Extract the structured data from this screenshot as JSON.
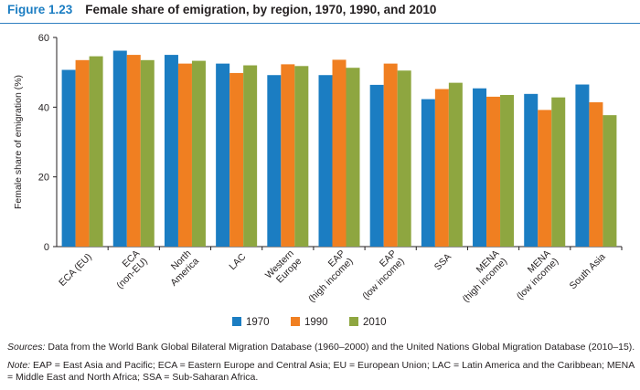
{
  "figure": {
    "number": "Figure 1.23",
    "title": "Female share of emigration, by region, 1970, 1990, and 2010"
  },
  "chart_data": {
    "type": "bar",
    "title": "Female share of emigration, by region, 1970, 1990, and 2010",
    "xlabel": "",
    "ylabel": "Female share of emigration (%)",
    "ylim": [
      0,
      60
    ],
    "yticks": [
      0,
      20,
      40,
      60
    ],
    "grid": false,
    "legend_position": "bottom",
    "categories": [
      [
        "ECA (EU)"
      ],
      [
        "ECA",
        "(non-EU)"
      ],
      [
        "North",
        "America"
      ],
      [
        "LAC"
      ],
      [
        "Western",
        "Europe"
      ],
      [
        "EAP",
        "(high income)"
      ],
      [
        "EAP",
        "(low income)"
      ],
      [
        "SSA"
      ],
      [
        "MENA",
        "(high income)"
      ],
      [
        "MENA",
        "(low income)"
      ],
      [
        "South Asia"
      ]
    ],
    "series": [
      {
        "name": "1970",
        "color": "#1b7dc2",
        "values": [
          50.7,
          56.2,
          55.0,
          52.5,
          49.2,
          49.2,
          46.4,
          42.3,
          45.4,
          43.8,
          46.5
        ]
      },
      {
        "name": "1990",
        "color": "#f07f21",
        "values": [
          53.5,
          55.0,
          52.5,
          49.8,
          52.3,
          53.6,
          52.5,
          45.2,
          43.0,
          39.2,
          41.4
        ]
      },
      {
        "name": "2010",
        "color": "#8ea640",
        "values": [
          54.6,
          53.5,
          53.3,
          52.0,
          51.8,
          51.3,
          50.5,
          47.0,
          43.5,
          42.8,
          37.7
        ]
      }
    ]
  },
  "notes": {
    "sources_label": "Sources:",
    "sources_text": " Data from the World Bank Global Bilateral Migration Database (1960–2000) and the United Nations Global Migration Database (2010–15).",
    "note_label": "Note:",
    "note_text": " EAP = East Asia and Pacific; ECA = Eastern Europe and Central Asia; EU = European Union; LAC = Latin America and the Caribbean; MENA = Middle East and North Africa; SSA = Sub-Saharan Africa."
  }
}
